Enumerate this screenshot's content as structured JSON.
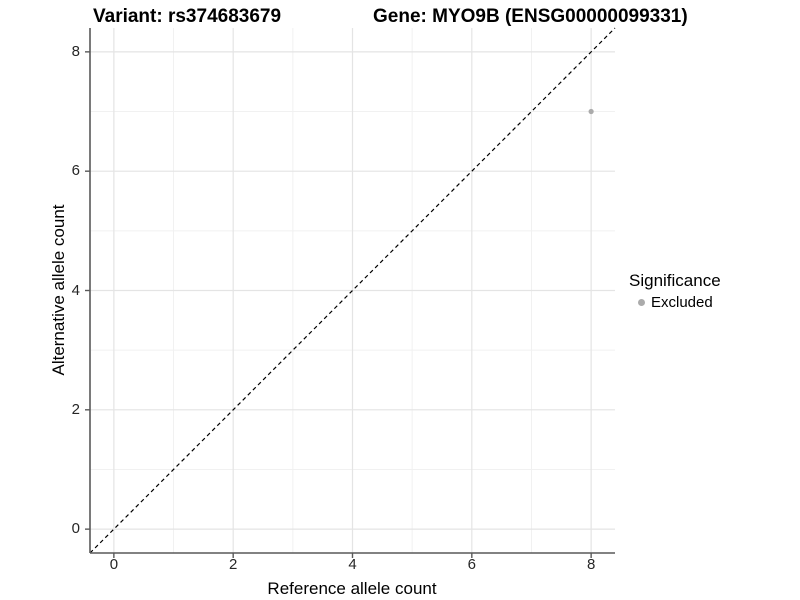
{
  "titles": {
    "variant": "Variant: rs374683679",
    "gene": "Gene: MYO9B (ENSG00000099331)"
  },
  "chart_data": {
    "type": "scatter",
    "title": "Variant: rs374683679  Gene: MYO9B (ENSG00000099331)",
    "xlabel": "Reference allele count",
    "ylabel": "Alternative allele count",
    "xlim": [
      -0.4,
      8.4
    ],
    "ylim": [
      -0.4,
      8.4
    ],
    "xticks": [
      0,
      2,
      4,
      6,
      8
    ],
    "yticks": [
      0,
      2,
      4,
      6,
      8
    ],
    "xminor": [
      1,
      3,
      5,
      7
    ],
    "yminor": [
      1,
      3,
      5,
      7
    ],
    "grid": true,
    "points": [
      {
        "x": 8,
        "y": 7,
        "series": "Excluded"
      }
    ],
    "reference_line": {
      "type": "identity",
      "slope": 1,
      "intercept": 0,
      "style": "dashed"
    },
    "legend": {
      "title": "Significance",
      "position": "right",
      "items": [
        {
          "label": "Excluded",
          "color": "#ABABAB"
        }
      ]
    },
    "colors": {
      "point": "#ABABAB",
      "reference_line": "#000000",
      "grid_major": "#E4E4E4",
      "grid_minor": "#F1F1F1",
      "axis_line": "#595959",
      "tick_mark": "#595959",
      "tick_text": "#262626"
    }
  }
}
